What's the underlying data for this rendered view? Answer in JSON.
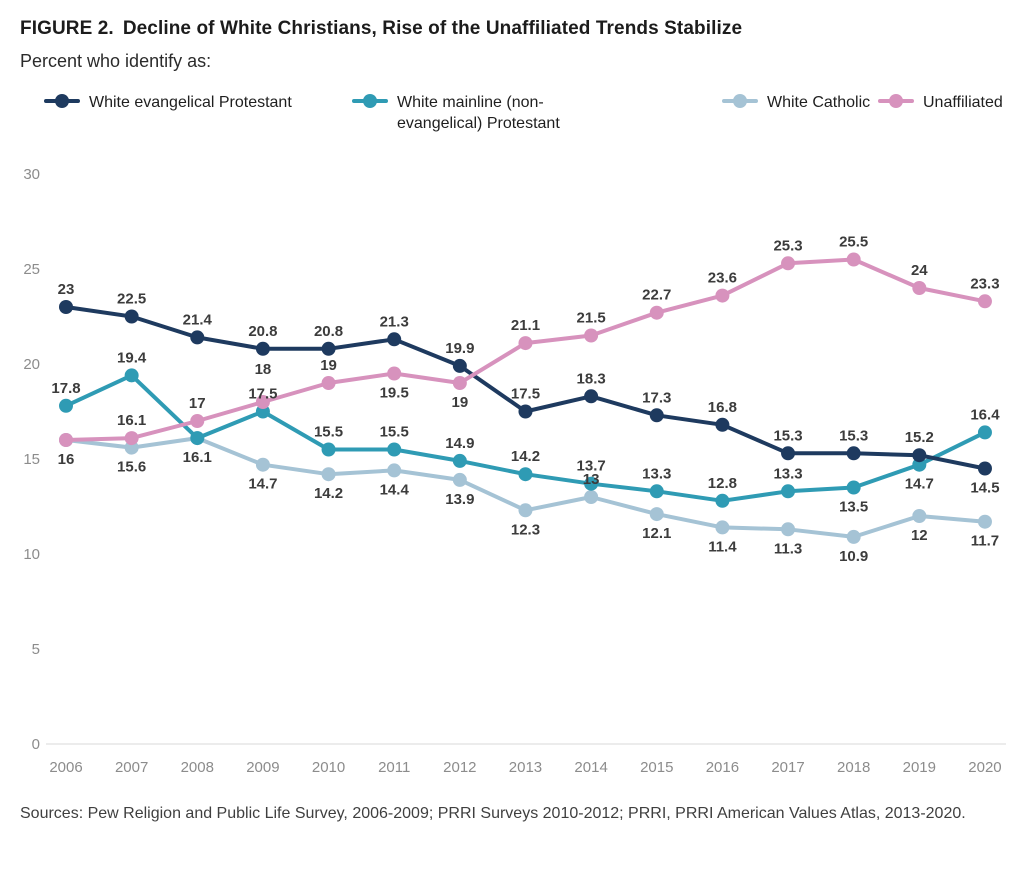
{
  "header": {
    "figure_label": "FIGURE 2.",
    "title": "Decline of White Christians, Rise of the Unaffiliated Trends Stabilize",
    "subtitle": "Percent who identify as:"
  },
  "source_note": "Sources: Pew Religion and Public Life Survey, 2006-2009; PRRI Surveys 2010-2012; PRRI, PRRI American Values Atlas, 2013-2020.",
  "colors": {
    "evangelical": "#1e3a5f",
    "mainline": "#2f9bb4",
    "catholic": "#a5c3d5",
    "unaffiliated": "#d792bd",
    "axis_text": "#8c8c8c",
    "data_label": "#3c3c3c"
  },
  "chart_data": {
    "type": "line",
    "x": [
      2006,
      2007,
      2008,
      2009,
      2010,
      2011,
      2012,
      2013,
      2014,
      2015,
      2016,
      2017,
      2018,
      2019,
      2020
    ],
    "ylim": [
      0,
      30
    ],
    "yticks": [
      0,
      5,
      10,
      15,
      20,
      25,
      30
    ],
    "grid": false,
    "legend_position": "top",
    "series": [
      {
        "name": "White evangelical Protestant",
        "color": "#1e3a5f",
        "values": [
          23,
          22.5,
          21.4,
          20.8,
          20.8,
          21.3,
          19.9,
          17.5,
          18.3,
          17.3,
          16.8,
          15.3,
          15.3,
          15.2,
          14.5
        ],
        "label_pos": [
          "above",
          "above",
          "above",
          "above",
          "above",
          "above",
          "above",
          "above",
          "above",
          "above",
          "above",
          "above",
          "above",
          "above",
          "below"
        ]
      },
      {
        "name": "White mainline (non-evangelical) Protestant",
        "color": "#2f9bb4",
        "values": [
          17.8,
          19.4,
          16.1,
          17.5,
          15.5,
          15.5,
          14.9,
          14.2,
          13.7,
          13.3,
          12.8,
          13.3,
          13.5,
          14.7,
          16.4
        ],
        "label_pos": [
          "above",
          "above",
          "below",
          "above",
          "above",
          "above",
          "above",
          "above",
          "above",
          "above",
          "above",
          "above",
          "below",
          "below",
          "above"
        ]
      },
      {
        "name": "White Catholic",
        "color": "#a5c3d5",
        "values": [
          16,
          15.6,
          16.1,
          14.7,
          14.2,
          14.4,
          13.9,
          12.3,
          13,
          12.1,
          11.4,
          11.3,
          10.9,
          12,
          11.7
        ],
        "label_pos": [
          "none",
          "below",
          "none",
          "below",
          "below",
          "below",
          "below",
          "below",
          "above",
          "below",
          "below",
          "below",
          "below",
          "below",
          "below"
        ]
      },
      {
        "name": "Unaffiliated",
        "color": "#d792bd",
        "values": [
          16,
          16.1,
          17,
          18,
          19,
          19.5,
          19,
          21.1,
          21.5,
          22.7,
          23.6,
          25.3,
          25.5,
          24,
          23.3
        ],
        "label_pos": [
          "below",
          "above",
          "above",
          "above-hi",
          "above",
          "below",
          "below",
          "above",
          "above",
          "above",
          "above",
          "above",
          "above",
          "above",
          "above"
        ]
      }
    ]
  }
}
